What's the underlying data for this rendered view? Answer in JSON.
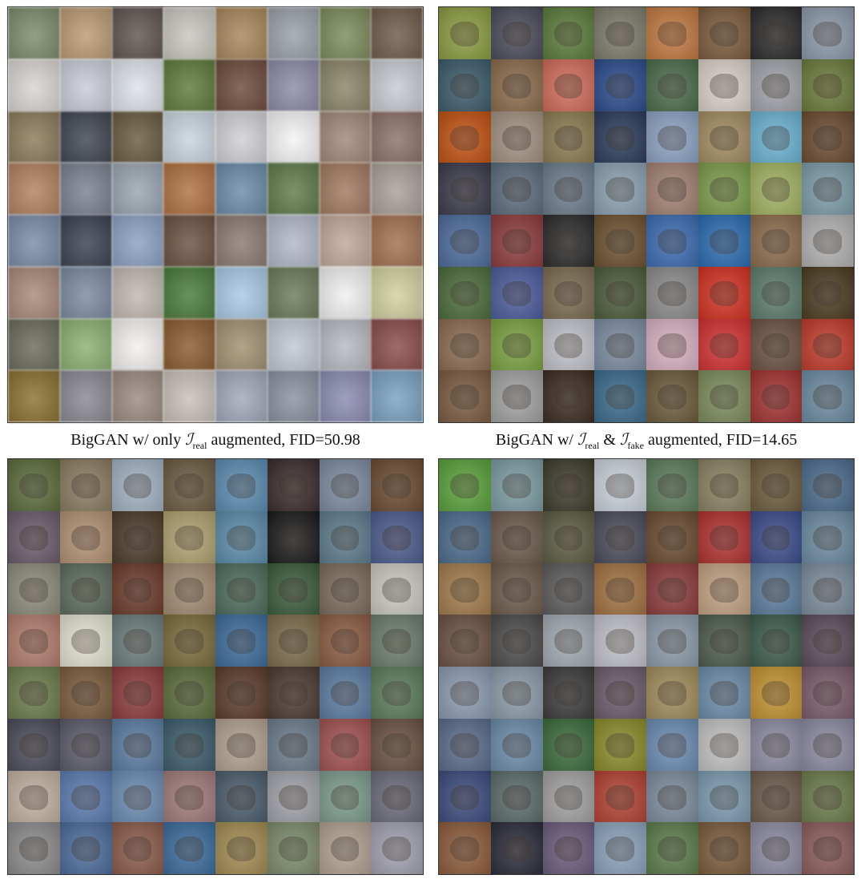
{
  "captions": {
    "left": {
      "prefix": "BigGAN w/ only ",
      "sym": "ℐ",
      "sub1": "real",
      "suffix": " augmented, FID=50.98"
    },
    "right": {
      "prefix": "BigGAN w/ ",
      "sym1": "ℐ",
      "sub1": "real",
      "mid": " & ",
      "sym2": "ℐ",
      "sub2": "fake",
      "suffix": " augmented, FID=14.65"
    }
  },
  "panels": [
    {
      "id": "top-left",
      "style": "blurry",
      "palette": [
        "#7c8a6a",
        "#b99a72",
        "#5e5450",
        "#c9c6c0",
        "#a8865a",
        "#9aa0a8",
        "#7a8a5a",
        "#6d5a48",
        "#d9d4d0",
        "#c8ccd6",
        "#dde2ea",
        "#5f7a3a",
        "#6b4a3a",
        "#8c8aa8",
        "#8a8466",
        "#c8cad0",
        "#8a7a5a",
        "#3f4450",
        "#6a5a40",
        "#c9d4de",
        "#d0d0d4",
        "#f4f4f4",
        "#a08878",
        "#8c7068",
        "#b08060",
        "#7a8090",
        "#9aa4b0",
        "#b07040",
        "#6a8aa8",
        "#5f7a4a",
        "#a07860",
        "#a8a098",
        "#7a8aa8",
        "#3a4050",
        "#8aa0c0",
        "#6a5040",
        "#8a7a70",
        "#b0b8c8",
        "#c0a898",
        "#a07050",
        "#a88878",
        "#7a8aa0",
        "#c0b8b0",
        "#4a7a3a",
        "#a8c8e4",
        "#6a7a5a",
        "#f0f0f0",
        "#d0d0a0",
        "#6a6a5a",
        "#8ab070",
        "#f4f0f0",
        "#8a5a30",
        "#a09070",
        "#c0c8d4",
        "#b8b8c0",
        "#8a4a4a",
        "#8a7030",
        "#8a8890",
        "#9a8a80",
        "#c8c0b8",
        "#a0a8b8",
        "#8a90a0",
        "#8a8ab0",
        "#7aa0c0"
      ]
    },
    {
      "id": "top-right",
      "style": "sharp",
      "palette": [
        "#8a9a40",
        "#4a4a5a",
        "#5a7a3a",
        "#7a7a6a",
        "#c07840",
        "#7a5a3a",
        "#2a2a2a",
        "#8a98a8",
        "#3a5a6a",
        "#8a6a4a",
        "#d06a5a",
        "#2a4a8a",
        "#4a6a4a",
        "#d8d0c8",
        "#a0a0a8",
        "#6a7a3a",
        "#c05010",
        "#a09080",
        "#8a7a50",
        "#2a3a5a",
        "#8aa0c0",
        "#a08a60",
        "#6ab0d0",
        "#6a4a30",
        "#3a3a4a",
        "#5a6a7a",
        "#6a7a8a",
        "#8aa0b0",
        "#a08070",
        "#7a9a4a",
        "#a0b060",
        "#7a9aa8",
        "#4a6a9a",
        "#8a3a3a",
        "#2a2a2a",
        "#6a5030",
        "#3a6ab0",
        "#2a6ab0",
        "#8a6a4a",
        "#b0b0b0",
        "#4a6a3a",
        "#4a5a9a",
        "#7a6a50",
        "#4a5a3a",
        "#8a8a8a",
        "#d03020",
        "#5a7a6a",
        "#4a3a20",
        "#8a6a50",
        "#7aa040",
        "#c0c0c8",
        "#7a8aa0",
        "#d8b0c0",
        "#d03030",
        "#6a5040",
        "#c03a2a",
        "#7a5a40",
        "#a0a0a0",
        "#3a2a20",
        "#3a6a8a",
        "#6a5a3a",
        "#7a8a5a",
        "#a03030",
        "#6a8aa0"
      ]
    },
    {
      "id": "bottom-left",
      "style": "sharp",
      "palette": [
        "#5a6a3a",
        "#8a7a60",
        "#a0b0c0",
        "#6a5a40",
        "#5a8ab0",
        "#3a2a2a",
        "#7a8aa0",
        "#6a4a30",
        "#6a5a6a",
        "#b09070",
        "#4a3a2a",
        "#b0a070",
        "#5a8aa8",
        "#1a1a1a",
        "#5a7a8a",
        "#4a5a8a",
        "#8a8a7a",
        "#5a6a5a",
        "#6a3a2a",
        "#a08a70",
        "#4a6a5a",
        "#3a5a3a",
        "#7a6a5a",
        "#c8c8c0",
        "#b07a6a",
        "#e0e0d0",
        "#6a7a7a",
        "#7a6a3a",
        "#3a6a9a",
        "#7a6a4a",
        "#8a5a40",
        "#6a7a6a",
        "#6a7a4a",
        "#7a5a3a",
        "#8a3a3a",
        "#5a6a3a",
        "#5a3a2a",
        "#4a3a30",
        "#5a7aa0",
        "#5a7a5a",
        "#4a4a5a",
        "#5a5a6a",
        "#5a7aa0",
        "#3a5a6a",
        "#b0a090",
        "#6a7a8a",
        "#a05050",
        "#6a5040",
        "#c0b0a0",
        "#5a7ab0",
        "#6a8ab0",
        "#a07a7a",
        "#4a5a6a",
        "#a0a0a8",
        "#7a9a8a",
        "#6a6a7a",
        "#8a8a8a",
        "#4a6a9a",
        "#8a5a4a",
        "#3a6a9a",
        "#a08a50",
        "#7a8a6a",
        "#b0a090",
        "#a0a0b0"
      ]
    },
    {
      "id": "bottom-right",
      "style": "sharp",
      "palette": [
        "#5aa03a",
        "#7a9aa0",
        "#3a3a2a",
        "#c8d0d8",
        "#5a7a5a",
        "#8a8060",
        "#6a5a3a",
        "#4a6a8a",
        "#4a6a8a",
        "#6a5a4a",
        "#5a5a40",
        "#4a4a5a",
        "#6a4a30",
        "#b03030",
        "#3a4a8a",
        "#6a8aa0",
        "#a07a4a",
        "#6a5a4a",
        "#5a5a5a",
        "#a07040",
        "#8a3a3a",
        "#c0a080",
        "#5a7a9a",
        "#7a8a9a",
        "#6a5040",
        "#4a4a4a",
        "#a0a8b0",
        "#c0c0c8",
        "#8a9aa8",
        "#4a5a4a",
        "#3a5a4a",
        "#5a4a5a",
        "#8a9ab0",
        "#8a9aa8",
        "#3a3a3a",
        "#6a5a6a",
        "#a08a5a",
        "#6a8aa8",
        "#c09030",
        "#7a5a6a",
        "#5a6a8a",
        "#6a8aa8",
        "#3a6a3a",
        "#8a8a2a",
        "#6a8ab0",
        "#c0c0c0",
        "#8a8aa0",
        "#8a8aa0",
        "#3a4a7a",
        "#5a6a6a",
        "#a0a0a0",
        "#b04030",
        "#7a8a9a",
        "#7a9ab0",
        "#6a5a4a",
        "#6a7a4a",
        "#8a5a3a",
        "#2a2a3a",
        "#6a5a7a",
        "#8aa0b8",
        "#5a7a4a",
        "#7a5a3a",
        "#8a8aa0",
        "#8a5a5a"
      ]
    }
  ]
}
